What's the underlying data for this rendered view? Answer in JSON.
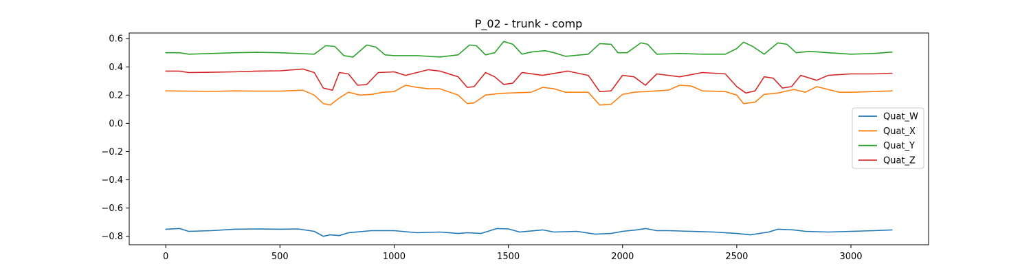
{
  "chart_data": {
    "type": "line",
    "title": "P_02 - trunk - comp",
    "xlabel": "",
    "ylabel": "",
    "xlim": [
      -160,
      3340
    ],
    "ylim": [
      -0.86,
      0.64
    ],
    "xticks": [
      0,
      500,
      1000,
      1500,
      2000,
      2500,
      3000
    ],
    "yticks": [
      -0.8,
      -0.6,
      -0.4,
      -0.2,
      0.0,
      0.2,
      0.4,
      0.6
    ],
    "ytick_labels": [
      "−0.8",
      "−0.6",
      "−0.4",
      "−0.2",
      "0.0",
      "0.2",
      "0.4",
      "0.6"
    ],
    "grid": false,
    "legend_position": "center-right",
    "series": [
      {
        "name": "Quat_W",
        "color": "#1f77b4",
        "points": [
          [
            0,
            -0.75
          ],
          [
            60,
            -0.745
          ],
          [
            100,
            -0.765
          ],
          [
            200,
            -0.76
          ],
          [
            300,
            -0.75
          ],
          [
            400,
            -0.748
          ],
          [
            500,
            -0.75
          ],
          [
            580,
            -0.748
          ],
          [
            650,
            -0.765
          ],
          [
            690,
            -0.8
          ],
          [
            720,
            -0.79
          ],
          [
            760,
            -0.795
          ],
          [
            800,
            -0.775
          ],
          [
            900,
            -0.76
          ],
          [
            1000,
            -0.76
          ],
          [
            1100,
            -0.775
          ],
          [
            1200,
            -0.77
          ],
          [
            1280,
            -0.78
          ],
          [
            1320,
            -0.775
          ],
          [
            1380,
            -0.78
          ],
          [
            1450,
            -0.745
          ],
          [
            1500,
            -0.748
          ],
          [
            1550,
            -0.77
          ],
          [
            1650,
            -0.755
          ],
          [
            1700,
            -0.77
          ],
          [
            1800,
            -0.765
          ],
          [
            1880,
            -0.785
          ],
          [
            1950,
            -0.78
          ],
          [
            2000,
            -0.765
          ],
          [
            2060,
            -0.755
          ],
          [
            2100,
            -0.745
          ],
          [
            2150,
            -0.76
          ],
          [
            2200,
            -0.76
          ],
          [
            2300,
            -0.765
          ],
          [
            2400,
            -0.77
          ],
          [
            2500,
            -0.78
          ],
          [
            2560,
            -0.79
          ],
          [
            2640,
            -0.77
          ],
          [
            2680,
            -0.75
          ],
          [
            2750,
            -0.755
          ],
          [
            2800,
            -0.765
          ],
          [
            2900,
            -0.77
          ],
          [
            3000,
            -0.765
          ],
          [
            3100,
            -0.76
          ],
          [
            3180,
            -0.755
          ]
        ]
      },
      {
        "name": "Quat_X",
        "color": "#ff7f0e",
        "points": [
          [
            0,
            0.23
          ],
          [
            100,
            0.228
          ],
          [
            200,
            0.226
          ],
          [
            300,
            0.23
          ],
          [
            400,
            0.228
          ],
          [
            500,
            0.228
          ],
          [
            600,
            0.235
          ],
          [
            650,
            0.2
          ],
          [
            690,
            0.14
          ],
          [
            720,
            0.13
          ],
          [
            760,
            0.18
          ],
          [
            800,
            0.22
          ],
          [
            850,
            0.2
          ],
          [
            900,
            0.205
          ],
          [
            950,
            0.22
          ],
          [
            1000,
            0.225
          ],
          [
            1050,
            0.27
          ],
          [
            1100,
            0.255
          ],
          [
            1150,
            0.245
          ],
          [
            1200,
            0.245
          ],
          [
            1280,
            0.2
          ],
          [
            1320,
            0.14
          ],
          [
            1350,
            0.145
          ],
          [
            1400,
            0.2
          ],
          [
            1450,
            0.21
          ],
          [
            1500,
            0.215
          ],
          [
            1600,
            0.22
          ],
          [
            1650,
            0.255
          ],
          [
            1700,
            0.245
          ],
          [
            1750,
            0.22
          ],
          [
            1850,
            0.22
          ],
          [
            1900,
            0.13
          ],
          [
            1950,
            0.135
          ],
          [
            2000,
            0.205
          ],
          [
            2050,
            0.22
          ],
          [
            2100,
            0.225
          ],
          [
            2200,
            0.235
          ],
          [
            2250,
            0.27
          ],
          [
            2300,
            0.265
          ],
          [
            2350,
            0.23
          ],
          [
            2450,
            0.225
          ],
          [
            2500,
            0.2
          ],
          [
            2530,
            0.14
          ],
          [
            2580,
            0.15
          ],
          [
            2620,
            0.205
          ],
          [
            2680,
            0.215
          ],
          [
            2750,
            0.24
          ],
          [
            2800,
            0.22
          ],
          [
            2850,
            0.26
          ],
          [
            2900,
            0.24
          ],
          [
            2950,
            0.22
          ],
          [
            3000,
            0.22
          ],
          [
            3100,
            0.225
          ],
          [
            3180,
            0.23
          ]
        ]
      },
      {
        "name": "Quat_Y",
        "color": "#2ca02c",
        "points": [
          [
            0,
            0.5
          ],
          [
            60,
            0.5
          ],
          [
            100,
            0.49
          ],
          [
            200,
            0.495
          ],
          [
            300,
            0.5
          ],
          [
            400,
            0.503
          ],
          [
            500,
            0.5
          ],
          [
            580,
            0.495
          ],
          [
            650,
            0.49
          ],
          [
            700,
            0.55
          ],
          [
            740,
            0.545
          ],
          [
            780,
            0.48
          ],
          [
            820,
            0.47
          ],
          [
            880,
            0.555
          ],
          [
            920,
            0.54
          ],
          [
            960,
            0.485
          ],
          [
            1000,
            0.48
          ],
          [
            1100,
            0.48
          ],
          [
            1200,
            0.47
          ],
          [
            1280,
            0.485
          ],
          [
            1330,
            0.555
          ],
          [
            1360,
            0.55
          ],
          [
            1400,
            0.485
          ],
          [
            1440,
            0.5
          ],
          [
            1480,
            0.58
          ],
          [
            1520,
            0.56
          ],
          [
            1560,
            0.49
          ],
          [
            1600,
            0.505
          ],
          [
            1660,
            0.515
          ],
          [
            1700,
            0.5
          ],
          [
            1750,
            0.475
          ],
          [
            1850,
            0.49
          ],
          [
            1900,
            0.565
          ],
          [
            1950,
            0.56
          ],
          [
            1980,
            0.5
          ],
          [
            2020,
            0.5
          ],
          [
            2080,
            0.57
          ],
          [
            2110,
            0.56
          ],
          [
            2150,
            0.49
          ],
          [
            2250,
            0.495
          ],
          [
            2350,
            0.49
          ],
          [
            2450,
            0.49
          ],
          [
            2500,
            0.53
          ],
          [
            2530,
            0.575
          ],
          [
            2570,
            0.545
          ],
          [
            2620,
            0.49
          ],
          [
            2680,
            0.57
          ],
          [
            2720,
            0.56
          ],
          [
            2760,
            0.5
          ],
          [
            2820,
            0.51
          ],
          [
            2900,
            0.5
          ],
          [
            3000,
            0.49
          ],
          [
            3100,
            0.495
          ],
          [
            3180,
            0.505
          ]
        ]
      },
      {
        "name": "Quat_Z",
        "color": "#d62728",
        "points": [
          [
            0,
            0.37
          ],
          [
            60,
            0.37
          ],
          [
            100,
            0.36
          ],
          [
            200,
            0.362
          ],
          [
            300,
            0.365
          ],
          [
            400,
            0.37
          ],
          [
            500,
            0.372
          ],
          [
            600,
            0.385
          ],
          [
            650,
            0.36
          ],
          [
            690,
            0.25
          ],
          [
            730,
            0.235
          ],
          [
            760,
            0.36
          ],
          [
            800,
            0.35
          ],
          [
            840,
            0.27
          ],
          [
            880,
            0.275
          ],
          [
            930,
            0.36
          ],
          [
            1000,
            0.365
          ],
          [
            1050,
            0.34
          ],
          [
            1150,
            0.38
          ],
          [
            1200,
            0.37
          ],
          [
            1280,
            0.33
          ],
          [
            1320,
            0.255
          ],
          [
            1350,
            0.26
          ],
          [
            1400,
            0.36
          ],
          [
            1440,
            0.33
          ],
          [
            1480,
            0.275
          ],
          [
            1520,
            0.285
          ],
          [
            1560,
            0.36
          ],
          [
            1650,
            0.34
          ],
          [
            1760,
            0.37
          ],
          [
            1850,
            0.34
          ],
          [
            1900,
            0.225
          ],
          [
            1950,
            0.23
          ],
          [
            2000,
            0.34
          ],
          [
            2050,
            0.33
          ],
          [
            2100,
            0.27
          ],
          [
            2150,
            0.35
          ],
          [
            2250,
            0.33
          ],
          [
            2350,
            0.36
          ],
          [
            2450,
            0.35
          ],
          [
            2500,
            0.26
          ],
          [
            2540,
            0.215
          ],
          [
            2580,
            0.23
          ],
          [
            2620,
            0.33
          ],
          [
            2660,
            0.32
          ],
          [
            2700,
            0.25
          ],
          [
            2740,
            0.26
          ],
          [
            2780,
            0.34
          ],
          [
            2820,
            0.32
          ],
          [
            2850,
            0.305
          ],
          [
            2900,
            0.34
          ],
          [
            3000,
            0.35
          ],
          [
            3100,
            0.35
          ],
          [
            3180,
            0.355
          ]
        ]
      }
    ]
  }
}
